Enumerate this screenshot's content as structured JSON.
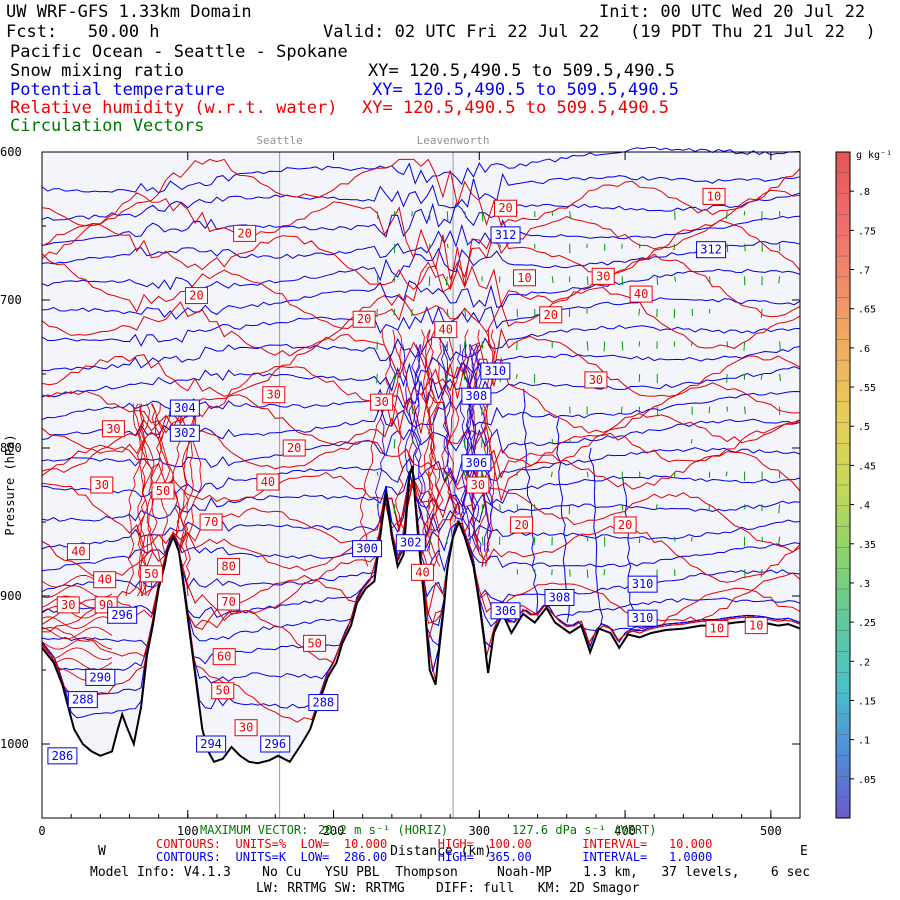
{
  "header": {
    "model": "UW WRF-GFS 1.33km Domain",
    "init": "Init: 00 UTC Wed 20 Jul 22",
    "fcst": "Fcst:   50.00 h",
    "valid": "Valid: 02 UTC Fri 22 Jul 22   (19 PDT Thu 21 Jul 22  )",
    "region": "Pacific Ocean - Seattle - Spokane",
    "field1": "Snow mixing ratio",
    "field1_xy": "XY= 120.5,490.5 to 509.5,490.5",
    "field2": "Potential temperature",
    "field2_xy": "XY= 120.5,490.5 to 509.5,490.5",
    "field3": "Relative humidity (w.r.t. water)",
    "field3_xy": "XY= 120.5,490.5 to 509.5,490.5",
    "field4": "Circulation Vectors"
  },
  "chart_data": {
    "type": "contour",
    "xlabel": "Distance (km)",
    "ylabel": "Pressure (hPa)",
    "xlim": [
      0,
      520
    ],
    "ylim": [
      1050,
      600
    ],
    "x_ticks": [
      "0",
      "100",
      "200",
      "300",
      "400",
      "500"
    ],
    "y_ticks": [
      "600",
      "700",
      "800",
      "900",
      "1000"
    ],
    "compass": [
      "W",
      "E"
    ],
    "locations": [
      {
        "name": "Seattle",
        "x": 163
      },
      {
        "name": "Leavenworth",
        "x": 282
      }
    ],
    "colorbar": {
      "unit": "g kg⁻¹",
      "labels": [
        ".8",
        ".75",
        ".7",
        ".65",
        ".6",
        ".55",
        ".5",
        ".45",
        ".4",
        ".35",
        ".3",
        ".25",
        ".2",
        ".15",
        ".1",
        ".05"
      ],
      "min": 0.05,
      "max": 0.8
    },
    "theta_labels": [
      {
        "v": "312",
        "x": 318,
        "p": 656
      },
      {
        "v": "312",
        "x": 459,
        "p": 666
      },
      {
        "v": "310",
        "x": 311,
        "p": 748
      },
      {
        "v": "308",
        "x": 298,
        "p": 765
      },
      {
        "v": "306",
        "x": 298,
        "p": 810
      },
      {
        "v": "304",
        "x": 98,
        "p": 773
      },
      {
        "v": "302",
        "x": 98,
        "p": 790
      },
      {
        "v": "302",
        "x": 253,
        "p": 864
      },
      {
        "v": "300",
        "x": 223,
        "p": 868
      },
      {
        "v": "310",
        "x": 412,
        "p": 892
      },
      {
        "v": "310",
        "x": 412,
        "p": 915
      },
      {
        "v": "308",
        "x": 355,
        "p": 901
      },
      {
        "v": "306",
        "x": 318,
        "p": 910
      },
      {
        "v": "296",
        "x": 55,
        "p": 913
      },
      {
        "v": "290",
        "x": 40,
        "p": 955
      },
      {
        "v": "288",
        "x": 28,
        "p": 970
      },
      {
        "v": "288",
        "x": 193,
        "p": 972
      },
      {
        "v": "294",
        "x": 116,
        "p": 1000
      },
      {
        "v": "296",
        "x": 160,
        "p": 1000
      },
      {
        "v": "286",
        "x": 14,
        "p": 1008
      }
    ],
    "rh_labels": [
      {
        "v": "10",
        "x": 461,
        "p": 630
      },
      {
        "v": "20",
        "x": 318,
        "p": 638
      },
      {
        "v": "20",
        "x": 139,
        "p": 655
      },
      {
        "v": "10",
        "x": 331,
        "p": 685
      },
      {
        "v": "30",
        "x": 385,
        "p": 684
      },
      {
        "v": "40",
        "x": 411,
        "p": 696
      },
      {
        "v": "20",
        "x": 106,
        "p": 697
      },
      {
        "v": "20",
        "x": 349,
        "p": 710
      },
      {
        "v": "20",
        "x": 221,
        "p": 713
      },
      {
        "v": "40",
        "x": 277,
        "p": 720
      },
      {
        "v": "30",
        "x": 380,
        "p": 754
      },
      {
        "v": "30",
        "x": 159,
        "p": 764
      },
      {
        "v": "30",
        "x": 233,
        "p": 769
      },
      {
        "v": "30",
        "x": 49,
        "p": 787
      },
      {
        "v": "20",
        "x": 173,
        "p": 800
      },
      {
        "v": "30",
        "x": 299,
        "p": 825
      },
      {
        "v": "30",
        "x": 41,
        "p": 825
      },
      {
        "v": "40",
        "x": 155,
        "p": 823
      },
      {
        "v": "50",
        "x": 83,
        "p": 829
      },
      {
        "v": "70",
        "x": 116,
        "p": 850
      },
      {
        "v": "20",
        "x": 329,
        "p": 852
      },
      {
        "v": "20",
        "x": 400,
        "p": 852
      },
      {
        "v": "40",
        "x": 25,
        "p": 870
      },
      {
        "v": "80",
        "x": 128,
        "p": 880
      },
      {
        "v": "50",
        "x": 75,
        "p": 885
      },
      {
        "v": "40",
        "x": 43,
        "p": 889
      },
      {
        "v": "40",
        "x": 261,
        "p": 884
      },
      {
        "v": "90",
        "x": 44,
        "p": 906
      },
      {
        "v": "30",
        "x": 18,
        "p": 906
      },
      {
        "v": "70",
        "x": 128,
        "p": 904
      },
      {
        "v": "10",
        "x": 463,
        "p": 922
      },
      {
        "v": "10",
        "x": 490,
        "p": 920
      },
      {
        "v": "50",
        "x": 187,
        "p": 932
      },
      {
        "v": "60",
        "x": 125,
        "p": 941
      },
      {
        "v": "50",
        "x": 124,
        "p": 964
      },
      {
        "v": "30",
        "x": 140,
        "p": 989
      }
    ],
    "footer": {
      "max_vector_label": "MAXIMUM VECTOR:",
      "max_vector_h": "20.2 m s⁻¹ (HORIZ)",
      "max_vector_v": "127.6 dPa s⁻¹ (VERT)",
      "rh_contours": "CONTOURS:  UNITS=%  LOW=  10.000       HIGH=  100.00       INTERVAL=   10.000",
      "theta_contours": "CONTOURS:  UNITS=K  LOW=  286.00       HIGH=  365.00       INTERVAL=   1.0000",
      "model_info": "Model Info: V4.1.3    No Cu   YSU PBL  Thompson     Noah-MP    1.3 km,   37 levels,    6 sec",
      "physics": "LW: RRTMG SW: RRTMG    DIFF: full   KM: 2D Smagor"
    }
  }
}
